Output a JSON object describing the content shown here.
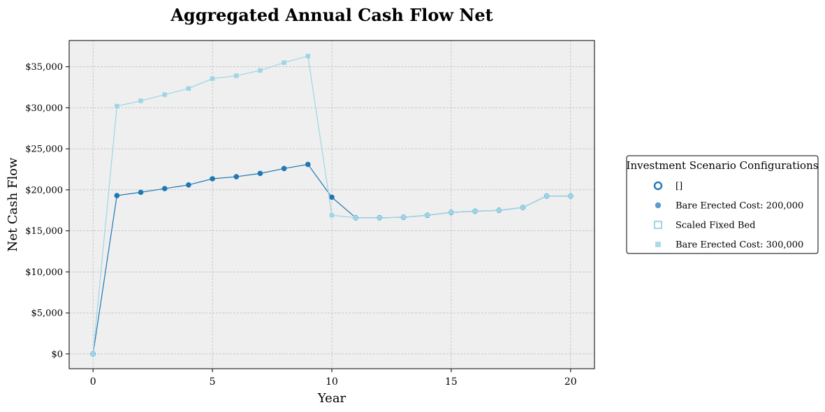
{
  "chart_data": {
    "type": "line",
    "title": "Aggregated Annual Cash Flow Net",
    "xlabel": "Year",
    "ylabel": "Net Cash Flow",
    "xlim": [
      -1,
      21
    ],
    "ylim": [
      -1800,
      38200
    ],
    "x_ticks": [
      0,
      5,
      10,
      15,
      20
    ],
    "x_tick_labels": [
      "0",
      "5",
      "10",
      "15",
      "20"
    ],
    "y_ticks": [
      0,
      5000,
      10000,
      15000,
      20000,
      25000,
      30000,
      35000
    ],
    "y_tick_labels": [
      "$0",
      "$5,000",
      "$10,000",
      "$15,000",
      "$20,000",
      "$25,000",
      "$30,000",
      "$35,000"
    ],
    "grid": true,
    "legend": {
      "title": "Investment Scenario Configurations",
      "placement": "outside-right",
      "entries": [
        {
          "label": "[]",
          "marker": "circle-open",
          "color": "#2b7bba"
        },
        {
          "label": "Bare Erected Cost: 200,000",
          "marker": "circle",
          "color": "#5a9bd0"
        },
        {
          "label": "Scaled Fixed Bed",
          "marker": "square-open",
          "color": "#a6d8e4"
        },
        {
          "label": "Bare Erected Cost: 300,000",
          "marker": "square",
          "color": "#aadbe8"
        }
      ]
    },
    "x": [
      0,
      1,
      2,
      3,
      4,
      5,
      6,
      7,
      8,
      9,
      10,
      11,
      12,
      13,
      14,
      15,
      16,
      17,
      18,
      19,
      20
    ],
    "series": [
      {
        "color": "#1f77b4",
        "marker": "circle",
        "values": [
          0,
          19300,
          19700,
          20150,
          20600,
          21350,
          21600,
          22000,
          22600,
          23100,
          19100,
          16600,
          16600,
          16650,
          16900,
          17250,
          17400,
          17500,
          17850,
          19250,
          19250
        ]
      },
      {
        "color": "#9ed5e5",
        "marker": "square",
        "values": [
          0,
          30200,
          30850,
          31600,
          32350,
          33550,
          33900,
          34550,
          35500,
          36300,
          16900,
          16600,
          16600,
          16650,
          16900,
          17250,
          17400,
          17500,
          17850,
          19250,
          19250
        ]
      }
    ],
    "colors": {
      "plot_background": "#efefef",
      "grid": "#b0b0b0"
    }
  }
}
